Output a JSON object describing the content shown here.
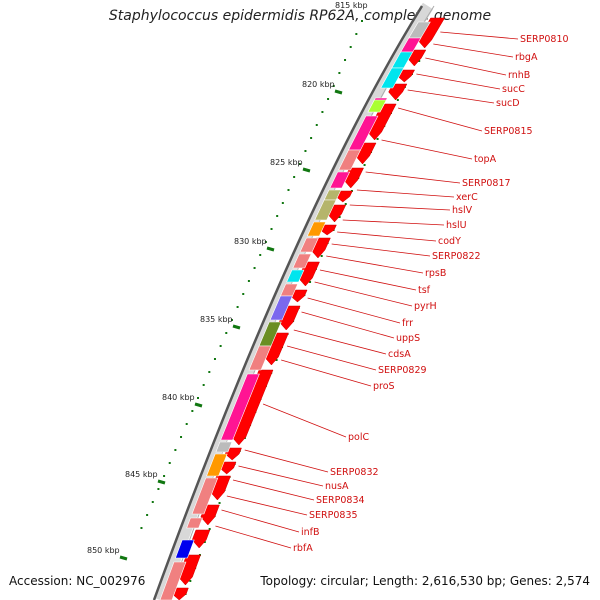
{
  "title": "Staphylococcus epidermidis RP62A, complete genome",
  "footer": {
    "accession": "Accession: NC_002976",
    "summary": "Topology: circular; Length: 2,616,530 bp; Genes: 2,574"
  },
  "scale_labels": [
    "815 kbp",
    "820 kbp",
    "825 kbp",
    "830 kbp",
    "835 kbp",
    "840 kbp",
    "845 kbp",
    "850 kbp"
  ],
  "colors": {
    "forward_cds": "#ff0000",
    "backbone": "#555555",
    "gc_dots": "#117711",
    "label": "#d01010",
    "cog_pink": "#ff1493",
    "cog_lightred": "#f08080",
    "cog_cyan": "#00e5ee",
    "cog_olive": "#b5b56b",
    "cog_orange": "#ff9900",
    "cog_purple": "#7b68ee",
    "cog_darkolive": "#6b8e23",
    "cog_blue": "#0000ee",
    "cog_grey": "#bbbbbb",
    "cog_lime": "#aaff33"
  },
  "gene_labels": [
    "SERP0810",
    "rbgA",
    "rnhB",
    "sucC",
    "sucD",
    "SERP0815",
    "topA",
    "SERP0817",
    "xerC",
    "hslV",
    "hslU",
    "codY",
    "SERP0822",
    "rpsB",
    "tsf",
    "pyrH",
    "frr",
    "uppS",
    "cdsA",
    "SERP0829",
    "proS",
    "polC",
    "SERP0832",
    "nusA",
    "SERP0834",
    "SERP0835",
    "infB",
    "rbfA"
  ]
}
